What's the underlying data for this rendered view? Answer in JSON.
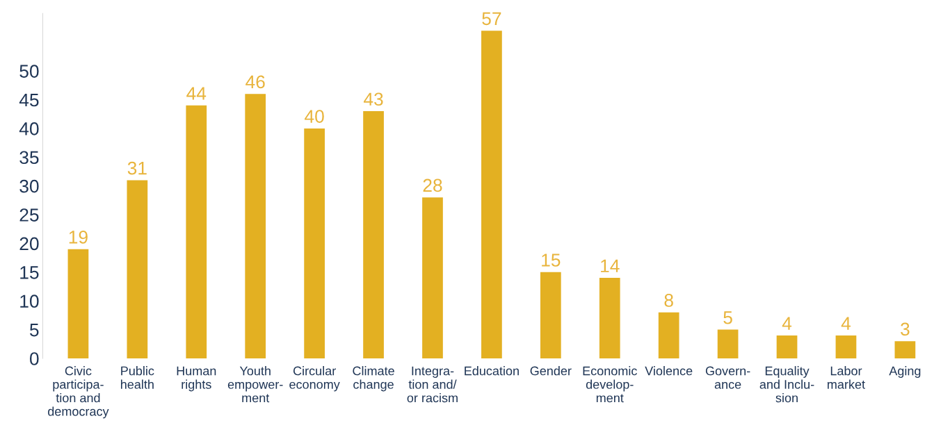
{
  "chart_data": {
    "type": "bar",
    "categories": [
      "Civic\nparticipa-\ntion and\ndemocracy",
      "Public\nhealth",
      "Human\nrights",
      "Youth\nempower-\nment",
      "Circular\neconomy",
      "Climate\nchange",
      "Integra-\ntion and/\nor racism",
      "Education",
      "Gender",
      "Economic\ndevelop-\nment",
      "Violence",
      "Govern-\nance",
      "Equality\nand Inclu-\nsion",
      "Labor\nmarket",
      "Aging"
    ],
    "values": [
      19,
      31,
      44,
      46,
      40,
      43,
      28,
      57,
      15,
      14,
      8,
      5,
      4,
      4,
      3
    ],
    "color": "#e3b022",
    "data_labels": true,
    "ylim": [
      0,
      60
    ],
    "yticks": [
      0,
      5,
      10,
      15,
      20,
      25,
      30,
      35,
      40,
      45,
      50
    ],
    "grid": false,
    "legend": false
  }
}
